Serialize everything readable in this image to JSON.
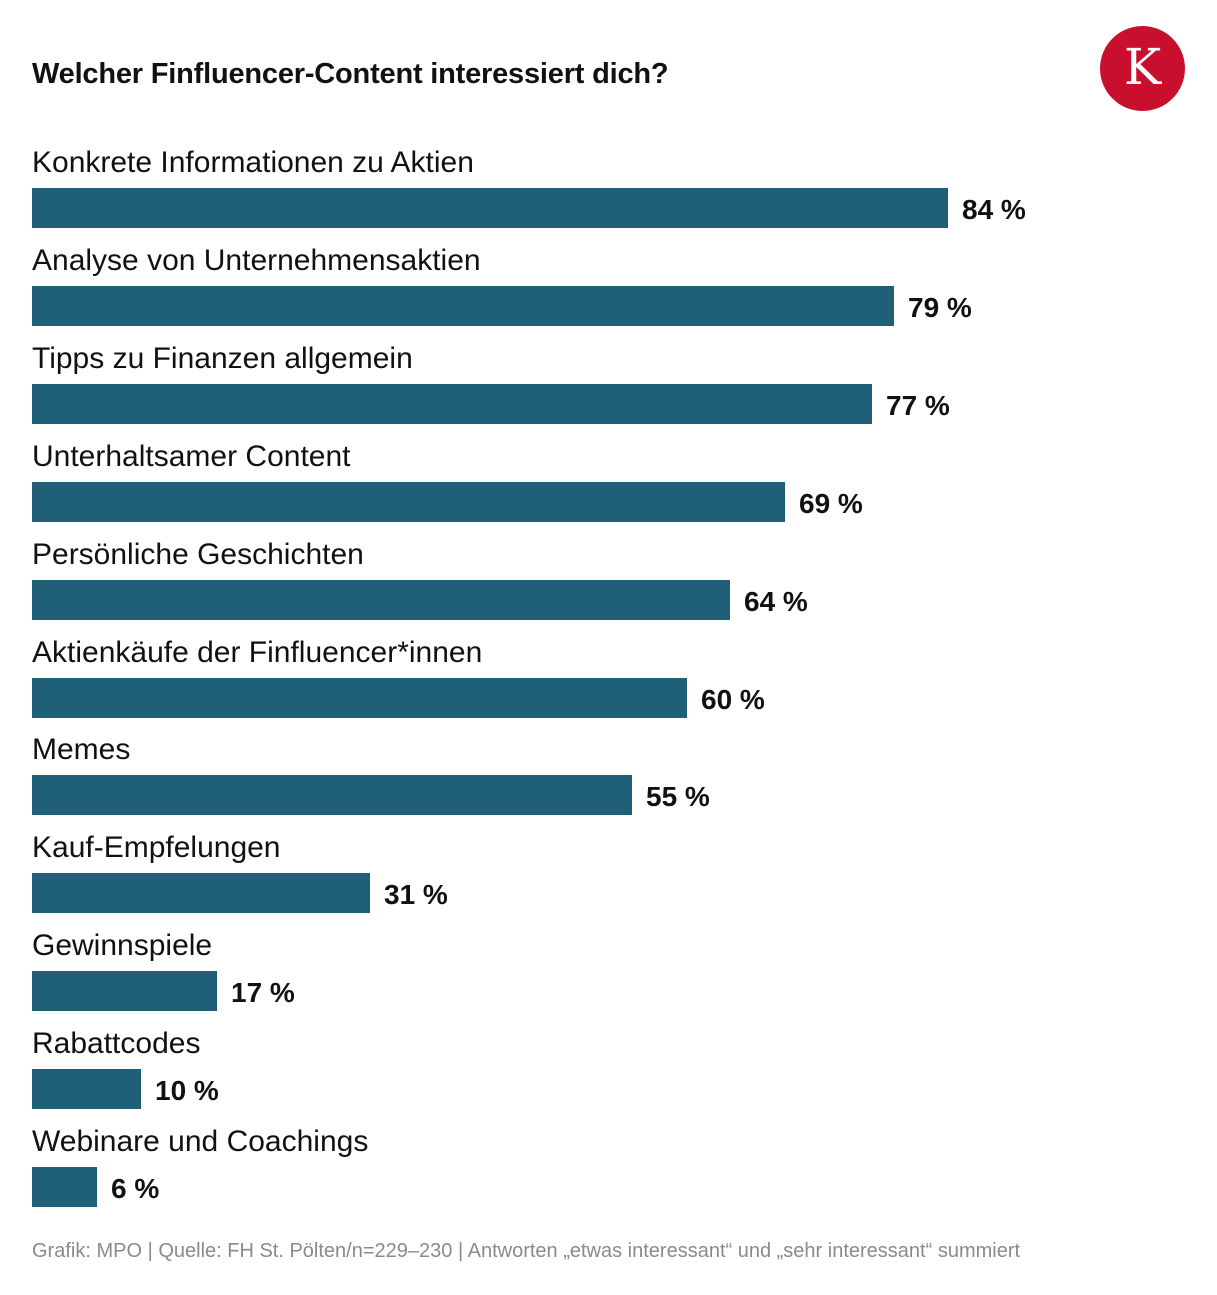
{
  "header": {
    "title": "Welcher Finfluencer-Content interessiert dich?",
    "logo_letter": "K",
    "logo_color": "#c8102e"
  },
  "chart_data": {
    "type": "bar",
    "orientation": "horizontal",
    "title": "Welcher Finfluencer-Content interessiert dich?",
    "categories": [
      "Konkrete Informationen zu Aktien",
      "Analyse von Unternehmensaktien",
      "Tipps zu Finanzen allgemein",
      "Unterhaltsamer Content",
      "Persönliche Geschichten",
      "Aktienkäufe der Finfluencer*innen",
      "Memes",
      "Kauf-Empfelungen",
      "Gewinnspiele",
      "Rabattcodes",
      "Webinare und Coachings"
    ],
    "values": [
      84,
      79,
      77,
      69,
      64,
      60,
      55,
      31,
      17,
      10,
      6
    ],
    "value_labels": [
      "84 %",
      "79 %",
      "77 %",
      "69 %",
      "64 %",
      "60 %",
      "55 %",
      "31 %",
      "17 %",
      "10 %",
      "6 %"
    ],
    "unit": "%",
    "xlim": [
      0,
      100
    ],
    "bar_color": "#1f5f78",
    "grid": false,
    "xlabel": "",
    "ylabel": ""
  },
  "footer": {
    "text": "Grafik: MPO | Quelle: FH St. Pölten/n=229–230 | Antworten „etwas interessant“ und „sehr interessant“ summiert"
  }
}
